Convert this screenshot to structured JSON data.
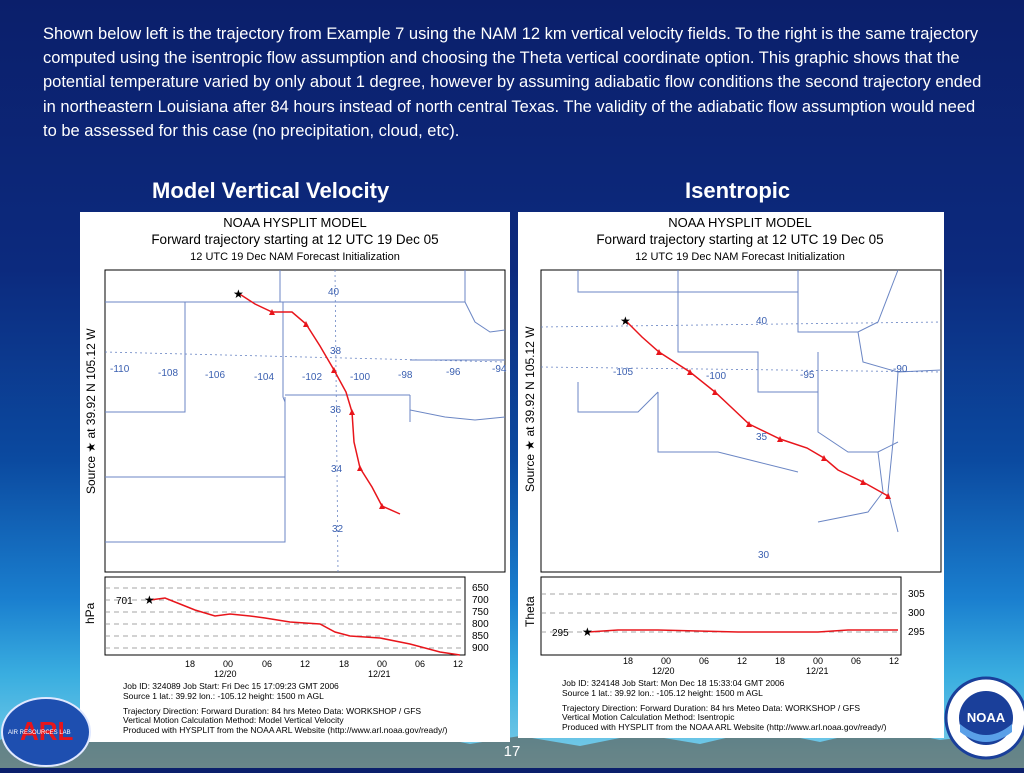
{
  "intro_text": "Shown below left is the trajectory from Example 7 using the NAM 12 km vertical velocity fields.  To the right is the same trajectory computed using the isentropic flow assumption and choosing the Theta vertical coordinate option. This graphic shows that the potential temperature varied by only about 1 degree, however by assuming adiabatic flow conditions the second trajectory ended in northeastern Louisiana after 84 hours instead of north central Texas. The validity of the adiabatic flow assumption would need to be assessed for this case (no precipitation, cloud, etc).",
  "left_heading": "Model Vertical Velocity",
  "right_heading": "Isentropic",
  "page_number": "17",
  "logo_left_text": "ARL",
  "logo_left_subtext": "AIR RESOURCES LAB",
  "logo_right_text": "NOAA",
  "colors": {
    "trajectory": "#e8151b",
    "map_lines": "#6b86c4",
    "label": "#3a5fb0"
  },
  "left_panel": {
    "title1": "NOAA HYSPLIT MODEL",
    "title2": "Forward trajectory starting at 12 UTC 19 Dec 05",
    "title3": "12 UTC 19 Dec      NAM  Forecast Initialization",
    "source_label": "Source  ★  at   39.92 N  105.12 W",
    "lon_labels": [
      "-110",
      "-108",
      "-106",
      "-104",
      "-102",
      "-100",
      "-98",
      "-96",
      "-94"
    ],
    "lat_labels": [
      "40",
      "38",
      "36",
      "34",
      "32"
    ],
    "vert_axis_label": "hPa",
    "vert_start_label": "701",
    "vert_right_ticks": [
      "650",
      "700",
      "750",
      "800",
      "850",
      "900"
    ],
    "time_ticks": [
      "18",
      "00",
      "06",
      "12",
      "18",
      "00",
      "06",
      "12"
    ],
    "date_labels": [
      "12/20",
      "12/21"
    ],
    "info": [
      "Job ID: 324089        Job Start: Fri Dec 15 17:09:23 GMT 2006",
      "Source 1      lat.: 39.92    lon.: -105.12      height: 1500 m AGL",
      "Trajectory Direction: Forward     Duration: 84 hrs     Meteo Data: WORKSHOP / GFS",
      "Vertical Motion Calculation Method: Model Vertical Velocity",
      "Produced with HYSPLIT from the NOAA ARL Website (http://www.arl.noaa.gov/ready/)"
    ]
  },
  "right_panel": {
    "title1": "NOAA HYSPLIT MODEL",
    "title2": "Forward trajectory starting at 12 UTC 19 Dec 05",
    "title3": "12 UTC 19 Dec      NAM  Forecast Initialization",
    "source_label": "Source  ★  at   39.92 N  105.12 W",
    "lon_labels": [
      "-105",
      "-100",
      "-95",
      "-90"
    ],
    "lat_labels": [
      "40",
      "35",
      "30"
    ],
    "vert_axis_label": "Theta",
    "vert_start_label": "295",
    "vert_right_ticks": [
      "305",
      "300",
      "295"
    ],
    "time_ticks": [
      "18",
      "00",
      "06",
      "12",
      "18",
      "00",
      "06",
      "12"
    ],
    "date_labels": [
      "12/20",
      "12/21"
    ],
    "info": [
      "Job ID: 324148        Job Start: Mon Dec 18 15:33:04 GMT 2006",
      "Source 1      lat.: 39.92    lon.: -105.12      height: 1500 m AGL",
      "Trajectory Direction: Forward     Duration: 84 hrs     Meteo Data: WORKSHOP / GFS",
      "Vertical Motion Calculation Method: Isentropic",
      "Produced with HYSPLIT from the NOAA ARL Website (http://www.arl.noaa.gov/ready/)"
    ]
  }
}
